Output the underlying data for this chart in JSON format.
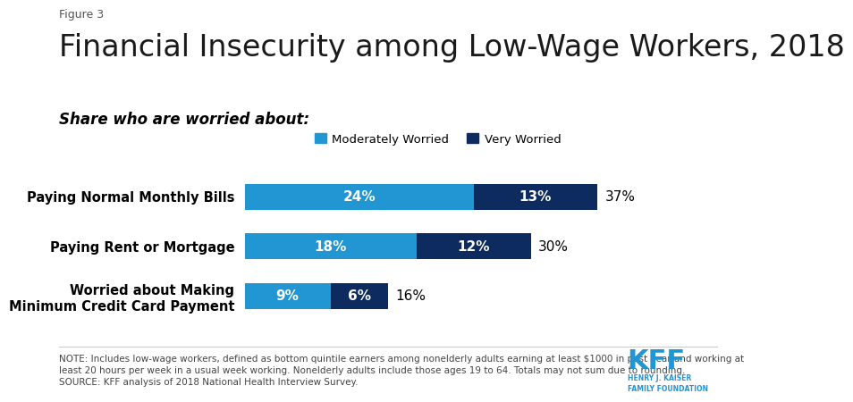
{
  "figure_label": "Figure 3",
  "title": "Financial Insecurity among Low-Wage Workers, 2018",
  "subtitle": "Share who are worried about:",
  "categories": [
    "Paying Normal Monthly Bills",
    "Paying Rent or Mortgage",
    "Worried about Making\nMinimum Credit Card Payment"
  ],
  "moderate_values": [
    24,
    18,
    9
  ],
  "very_values": [
    13,
    12,
    6
  ],
  "totals": [
    37,
    30,
    16
  ],
  "moderate_color": "#2196d3",
  "very_color": "#0d2b5e",
  "bar_height": 0.52,
  "xlim": [
    0,
    45
  ],
  "legend_labels": [
    "Moderately Worried",
    "Very Worried"
  ],
  "note_text": "NOTE: Includes low-wage workers, defined as bottom quintile earners among nonelderly adults earning at least $1000 in past year and working at\nleast 20 hours per week in a usual week working. Nonelderly adults include those ages 19 to 64. Totals may not sum due to rounding.\nSOURCE: KFF analysis of 2018 National Health Interview Survey.",
  "bg_color": "#ffffff",
  "title_fontsize": 24,
  "subtitle_fontsize": 12,
  "bar_label_fontsize": 11,
  "total_label_fontsize": 11,
  "note_fontsize": 7.5,
  "kff_color": "#2196d3"
}
